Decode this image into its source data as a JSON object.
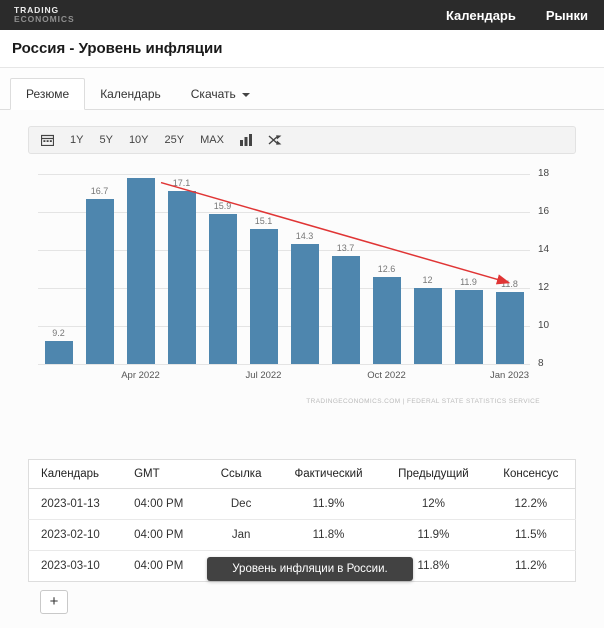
{
  "header": {
    "logo_line1": "TRADING",
    "logo_line2": "ECONOMICS",
    "nav": [
      {
        "label": "Календарь",
        "name": "calendar"
      },
      {
        "label": "Рынки",
        "name": "markets"
      }
    ]
  },
  "page_title": "Россия - Уровень инфляции",
  "tabs": [
    {
      "label": "Резюме",
      "name": "summary",
      "active": true,
      "has_caret": false
    },
    {
      "label": "Календарь",
      "name": "calendar",
      "active": false,
      "has_caret": false
    },
    {
      "label": "Скачать",
      "name": "download",
      "active": false,
      "has_caret": true
    }
  ],
  "toolbar": {
    "ranges": [
      "1Y",
      "5Y",
      "10Y",
      "25Y",
      "MAX"
    ],
    "icons": [
      "calendar-icon",
      "bar-chart-icon",
      "compare-icon"
    ]
  },
  "chart_data": {
    "type": "bar",
    "title": "",
    "values": [
      9.2,
      16.7,
      17.8,
      17.1,
      15.9,
      15.1,
      14.3,
      13.7,
      12.6,
      12,
      11.9,
      11.8
    ],
    "bar_labels": [
      "9.2",
      "16.7",
      "",
      "17.1",
      "15.9",
      "15.1",
      "14.3",
      "13.7",
      "12.6",
      "12",
      "11.9",
      "11.8"
    ],
    "x_ticks": [
      {
        "index": 2,
        "label": "Apr 2022"
      },
      {
        "index": 5,
        "label": "Jul 2022"
      },
      {
        "index": 8,
        "label": "Oct 2022"
      },
      {
        "index": 11,
        "label": "Jan 2023"
      }
    ],
    "y_ticks": [
      8,
      10,
      12,
      14,
      16,
      18
    ],
    "ylim": [
      8,
      18
    ],
    "grid": true,
    "legend": false,
    "bar_color": "#4e86ae",
    "value_label_color": "#777777",
    "trend_arrow": {
      "color": "#e03535",
      "from": {
        "index": 2.5,
        "value": 17.55
      },
      "to": {
        "index": 10.95,
        "value": 12.3
      }
    },
    "watermark": "TRADINGECONOMICS.COM | FEDERAL STATE STATISTICS SERVICE"
  },
  "table": {
    "columns": [
      "Календарь",
      "GMT",
      "Ссылка",
      "Фактический",
      "Предыдущий",
      "Консенсус"
    ],
    "rows": [
      [
        "2023-01-13",
        "04:00 PM",
        "Dec",
        "11.9%",
        "12%",
        "12.2%"
      ],
      [
        "2023-02-10",
        "04:00 PM",
        "Jan",
        "11.8%",
        "11.9%",
        "11.5%"
      ],
      [
        "2023-03-10",
        "04:00 PM",
        "Feb",
        "",
        "11.8%",
        "11.2%"
      ]
    ],
    "add_button_label": "+"
  },
  "tooltip": {
    "text": "Уровень инфляции в России."
  }
}
